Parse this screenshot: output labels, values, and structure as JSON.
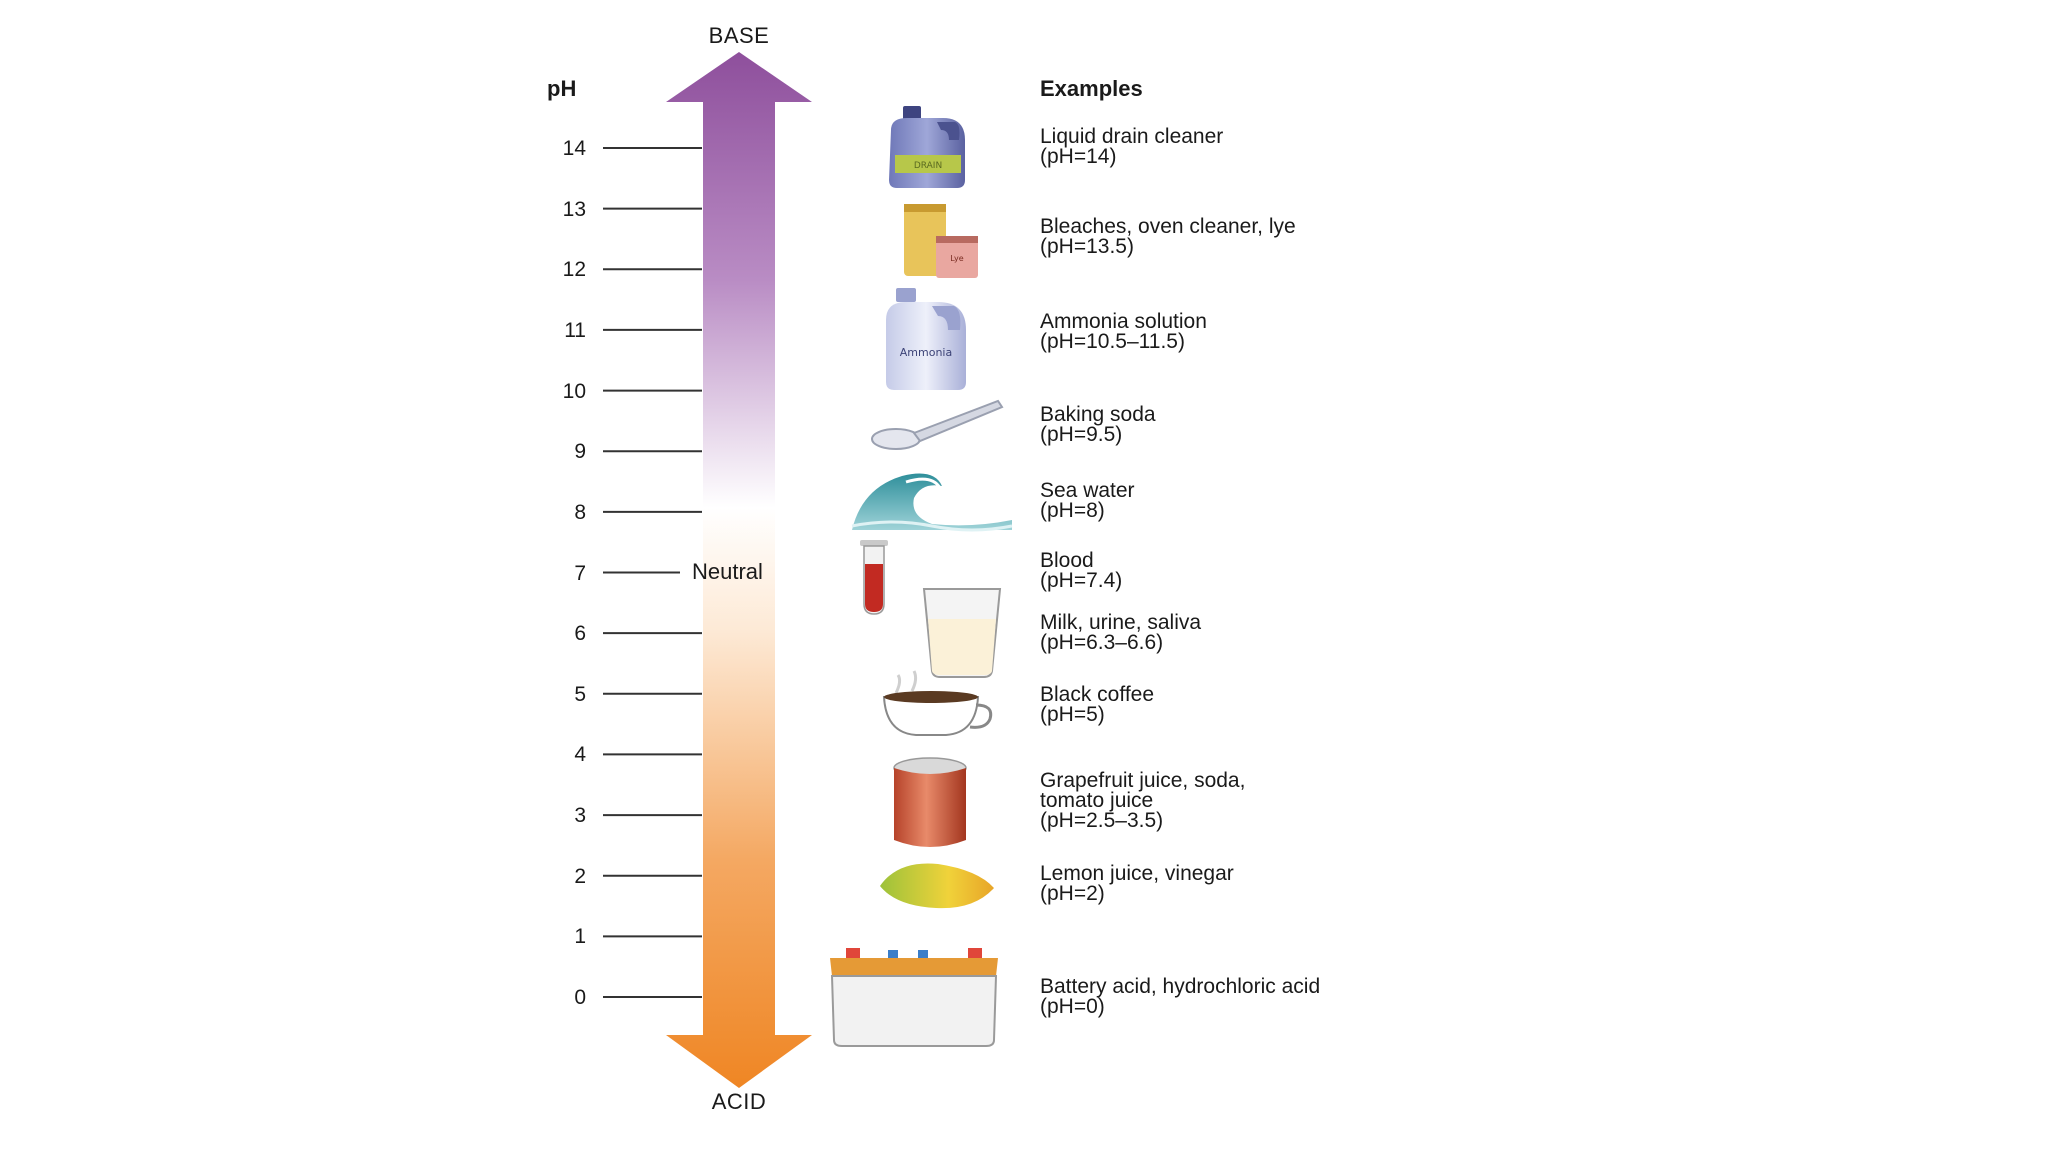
{
  "scale": {
    "top_label": "BASE",
    "bottom_label": "ACID",
    "axis_label": "pH",
    "neutral_label": "Neutral",
    "ticks": [
      {
        "value": 14,
        "label": "14"
      },
      {
        "value": 13,
        "label": "13"
      },
      {
        "value": 12,
        "label": "12"
      },
      {
        "value": 11,
        "label": "11"
      },
      {
        "value": 10,
        "label": "10"
      },
      {
        "value": 9,
        "label": "9"
      },
      {
        "value": 8,
        "label": "8"
      },
      {
        "value": 7,
        "label": "7"
      },
      {
        "value": 6,
        "label": "6"
      },
      {
        "value": 5,
        "label": "5"
      },
      {
        "value": 4,
        "label": "4"
      },
      {
        "value": 3,
        "label": "3"
      },
      {
        "value": 2,
        "label": "2"
      },
      {
        "value": 1,
        "label": "1"
      },
      {
        "value": 0,
        "label": "0"
      }
    ],
    "colors": {
      "base": "#8e4f9c",
      "neutral": "#ffffff",
      "acid": "#ef8624"
    }
  },
  "examples": {
    "heading": "Examples",
    "items": [
      {
        "id": "drain-cleaner",
        "icon": "drain-cleaner-jug-icon",
        "icon_text": "DRAIN",
        "lines": [
          "Liquid drain cleaner",
          "(pH=14)"
        ]
      },
      {
        "id": "bleach",
        "icon": "bleach-lye-containers-icon",
        "icon_text": "Lye",
        "lines": [
          "Bleaches, oven cleaner, lye",
          "(pH=13.5)"
        ]
      },
      {
        "id": "ammonia",
        "icon": "ammonia-jug-icon",
        "icon_text": "Ammonia",
        "lines": [
          "Ammonia solution",
          "(pH=10.5–11.5)"
        ]
      },
      {
        "id": "baking-soda",
        "icon": "spoon-icon",
        "lines": [
          "Baking soda",
          "(pH=9.5)"
        ]
      },
      {
        "id": "sea-water",
        "icon": "wave-icon",
        "lines": [
          "Sea water",
          "(pH=8)"
        ]
      },
      {
        "id": "blood",
        "icon": "test-tube-icon",
        "lines": [
          "Blood",
          "(pH=7.4)"
        ]
      },
      {
        "id": "milk",
        "icon": "milk-glass-icon",
        "lines": [
          "Milk, urine, saliva",
          "(pH=6.3–6.6)"
        ]
      },
      {
        "id": "coffee",
        "icon": "coffee-cup-icon",
        "lines": [
          "Black coffee",
          "(pH=5)"
        ]
      },
      {
        "id": "grapefruit",
        "icon": "soda-can-icon",
        "lines": [
          "Grapefruit juice, soda,",
          "tomato juice",
          "(pH=2.5–3.5)"
        ]
      },
      {
        "id": "lemon",
        "icon": "lemon-icon",
        "lines": [
          "Lemon juice, vinegar",
          "(pH=2)"
        ]
      },
      {
        "id": "battery",
        "icon": "car-battery-icon",
        "lines": [
          "Battery acid, hydrochloric acid",
          "(pH=0)"
        ]
      }
    ]
  }
}
